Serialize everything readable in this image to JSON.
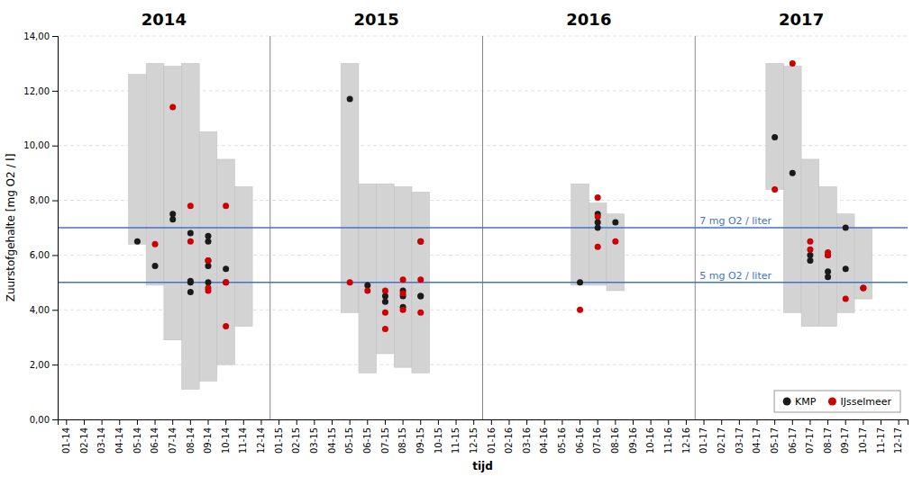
{
  "chart_data": {
    "type": "scatter",
    "xlabel": "tijd",
    "ylabel": "Zuurstofgehalte [mg O2 / l]",
    "categories": [
      "01-14",
      "02-14",
      "03-14",
      "04-14",
      "05-14",
      "06-14",
      "07-14",
      "08-14",
      "09-14",
      "10-14",
      "11-14",
      "12-14",
      "01-15",
      "02-15",
      "03-15",
      "04-15",
      "05-15",
      "06-15",
      "07-15",
      "08-15",
      "09-15",
      "10-15",
      "11-15",
      "12-15",
      "01-16",
      "02-16",
      "03-16",
      "04-16",
      "05-16",
      "06-16",
      "07-16",
      "08-16",
      "09-16",
      "10-16",
      "11-16",
      "12-16",
      "01-17",
      "02-17",
      "03-17",
      "04-17",
      "05-17",
      "06-17",
      "07-17",
      "08-17",
      "09-17",
      "10-17",
      "11-17",
      "12-17"
    ],
    "ylim": [
      0.0,
      14.0
    ],
    "yticks": [
      {
        "value": 0.0,
        "label": "0,00"
      },
      {
        "value": 2.0,
        "label": "2,00"
      },
      {
        "value": 4.0,
        "label": "4,00"
      },
      {
        "value": 6.0,
        "label": "6,00"
      },
      {
        "value": 8.0,
        "label": "8,00"
      },
      {
        "value": 10.0,
        "label": "10,00"
      },
      {
        "value": 12.0,
        "label": "12,00"
      },
      {
        "value": 14.0,
        "label": "14,00"
      }
    ],
    "grid": true,
    "legend": "lower right",
    "ranges": {
      "color": "#d3d3d3",
      "x": [
        "05-14",
        "06-14",
        "07-14",
        "08-14",
        "09-14",
        "10-14",
        "11-14",
        "05-15",
        "06-15",
        "07-15",
        "08-15",
        "09-15",
        "06-16",
        "07-16",
        "08-16",
        "05-17",
        "06-17",
        "07-17",
        "08-17",
        "09-17",
        "10-17"
      ],
      "low": [
        6.4,
        4.9,
        2.9,
        1.1,
        1.4,
        2.0,
        3.4,
        3.9,
        1.7,
        2.4,
        1.9,
        1.7,
        4.9,
        4.9,
        4.7,
        8.4,
        3.9,
        3.4,
        3.4,
        3.9,
        4.4
      ],
      "high": [
        12.6,
        13.0,
        12.9,
        13.0,
        10.5,
        9.5,
        8.5,
        13.0,
        8.6,
        8.6,
        8.5,
        8.3,
        8.6,
        7.9,
        7.5,
        13.0,
        12.9,
        9.5,
        8.5,
        7.5,
        7.0
      ]
    },
    "series": [
      {
        "name": "KMP",
        "color": "#1a1a1a",
        "x": [
          "05-14",
          "06-14",
          "07-14",
          "07-14",
          "08-14",
          "08-14",
          "08-14",
          "08-14",
          "09-14",
          "09-14",
          "09-14",
          "09-14",
          "09-14",
          "10-14",
          "10-14",
          "05-15",
          "06-15",
          "07-15",
          "07-15",
          "08-15",
          "08-15",
          "08-15",
          "09-15",
          "09-15",
          "09-15",
          "06-16",
          "07-16",
          "07-16",
          "07-16",
          "08-16",
          "05-17",
          "06-17",
          "07-17",
          "07-17",
          "08-17",
          "08-17",
          "08-17",
          "09-17",
          "09-17",
          "10-17"
        ],
        "values": [
          6.5,
          5.6,
          7.5,
          7.3,
          6.8,
          5.0,
          4.65,
          5.05,
          6.7,
          6.5,
          5.6,
          5.8,
          5.0,
          5.0,
          5.5,
          11.7,
          4.9,
          4.5,
          4.3,
          4.7,
          4.5,
          4.1,
          4.5,
          4.5,
          6.5,
          5.0,
          7.0,
          7.2,
          7.5,
          7.2,
          10.3,
          9.0,
          5.8,
          6.0,
          5.2,
          6.0,
          5.4,
          7.0,
          5.5,
          4.8
        ]
      },
      {
        "name": "IJsselmeer",
        "color": "#cc0000",
        "x": [
          "06-14",
          "07-14",
          "08-14",
          "08-14",
          "09-14",
          "09-14",
          "09-14",
          "10-14",
          "10-14",
          "10-14",
          "05-15",
          "06-15",
          "07-15",
          "07-15",
          "07-15",
          "08-15",
          "08-15",
          "08-15",
          "09-15",
          "09-15",
          "09-15",
          "06-16",
          "07-16",
          "07-16",
          "07-16",
          "08-16",
          "05-17",
          "06-17",
          "07-17",
          "07-17",
          "08-17",
          "08-17",
          "09-17",
          "10-17"
        ],
        "values": [
          6.4,
          11.4,
          7.8,
          6.5,
          5.8,
          4.7,
          4.8,
          7.8,
          5.0,
          3.4,
          5.0,
          4.7,
          4.7,
          3.3,
          3.9,
          4.6,
          5.1,
          4.0,
          3.9,
          5.1,
          6.5,
          4.0,
          6.3,
          7.4,
          8.1,
          6.5,
          8.4,
          13.0,
          6.5,
          6.2,
          6.0,
          6.1,
          4.4,
          4.8
        ]
      }
    ],
    "reference_lines": [
      {
        "y": 7.0,
        "label": "7 mg O2 / liter",
        "color": "#4472c4"
      },
      {
        "y": 5.0,
        "label": "5 mg O2 / liter",
        "color": "#4472c4"
      }
    ],
    "year_groups": [
      {
        "label": "2014",
        "from": "01-14",
        "to": "12-14"
      },
      {
        "label": "2015",
        "from": "01-15",
        "to": "12-15"
      },
      {
        "label": "2016",
        "from": "01-16",
        "to": "12-16"
      },
      {
        "label": "2017",
        "from": "01-17",
        "to": "12-17"
      }
    ]
  }
}
